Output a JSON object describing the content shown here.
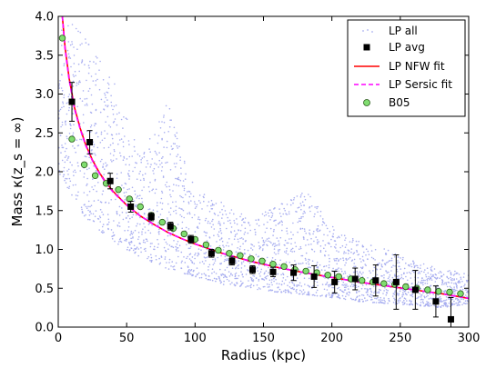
{
  "chart_data": {
    "type": "scatter",
    "title": "",
    "xlabel": "Radius (kpc)",
    "ylabel": "Mass κ(z_s = ∞)",
    "xlim": [
      0,
      300
    ],
    "ylim": [
      0,
      4.0
    ],
    "xticks": [
      0,
      50,
      100,
      150,
      200,
      250,
      300
    ],
    "yticks": [
      0.0,
      0.5,
      1.0,
      1.5,
      2.0,
      2.5,
      3.0,
      3.5,
      4.0
    ],
    "xtick_labels": [
      "0",
      "50",
      "100",
      "150",
      "200",
      "250",
      "300"
    ],
    "ytick_labels": [
      "0.0",
      "0.5",
      "1.0",
      "1.5",
      "2.0",
      "2.5",
      "3.0",
      "3.5",
      "4.0"
    ],
    "grid": false,
    "legend_position": "top-right",
    "colors": {
      "lp_all": "#a8aef0",
      "lp_avg": "#000000",
      "nfw": "#ff0000",
      "sersic": "#ff00ff",
      "b05_fill": "#80dd70",
      "b05_edge": "#2a5a1a"
    },
    "series": [
      {
        "name": "LP all",
        "kind": "cloud",
        "x": [
          0,
          20,
          40,
          60,
          80,
          100,
          120,
          140,
          160,
          180,
          200,
          220,
          240,
          260,
          280,
          300
        ],
        "lower": [
          2.0,
          1.4,
          1.1,
          0.9,
          0.75,
          0.65,
          0.55,
          0.5,
          0.45,
          0.42,
          0.38,
          0.33,
          0.3,
          0.28,
          0.25,
          0.3
        ],
        "upper": [
          4.0,
          3.8,
          3.2,
          2.2,
          2.9,
          1.8,
          1.6,
          1.4,
          1.55,
          1.8,
          1.3,
          1.1,
          1.0,
          0.85,
          0.75,
          0.7
        ]
      },
      {
        "name": "LP avg",
        "kind": "errorbar",
        "points": [
          {
            "x": 10,
            "y": 2.9,
            "err": 0.25
          },
          {
            "x": 23,
            "y": 2.38,
            "err": 0.15
          },
          {
            "x": 38,
            "y": 1.88,
            "err": 0.1
          },
          {
            "x": 53,
            "y": 1.55,
            "err": 0.07
          },
          {
            "x": 68,
            "y": 1.42,
            "err": 0.05
          },
          {
            "x": 82,
            "y": 1.3,
            "err": 0.05
          },
          {
            "x": 97,
            "y": 1.13,
            "err": 0.05
          },
          {
            "x": 112,
            "y": 0.95,
            "err": 0.05
          },
          {
            "x": 127,
            "y": 0.85,
            "err": 0.05
          },
          {
            "x": 142,
            "y": 0.74,
            "err": 0.05
          },
          {
            "x": 157,
            "y": 0.71,
            "err": 0.06
          },
          {
            "x": 172,
            "y": 0.7,
            "err": 0.1
          },
          {
            "x": 187,
            "y": 0.65,
            "err": 0.14
          },
          {
            "x": 202,
            "y": 0.58,
            "err": 0.14
          },
          {
            "x": 217,
            "y": 0.62,
            "err": 0.14
          },
          {
            "x": 232,
            "y": 0.6,
            "err": 0.2
          },
          {
            "x": 247,
            "y": 0.58,
            "err": 0.35
          },
          {
            "x": 261,
            "y": 0.48,
            "err": 0.25
          },
          {
            "x": 276,
            "y": 0.33,
            "err": 0.2
          },
          {
            "x": 287,
            "y": 0.1,
            "err": 0.28
          }
        ]
      },
      {
        "name": "LP NFW fit",
        "kind": "line",
        "style": "solid",
        "x": [
          3,
          5,
          8,
          12,
          16,
          20,
          25,
          30,
          35,
          40,
          50,
          60,
          70,
          80,
          90,
          100,
          120,
          140,
          160,
          180,
          200,
          220,
          240,
          260,
          280,
          300
        ],
        "y": [
          4.0,
          3.6,
          3.2,
          2.82,
          2.56,
          2.35,
          2.15,
          1.99,
          1.86,
          1.75,
          1.57,
          1.43,
          1.32,
          1.22,
          1.14,
          1.07,
          0.95,
          0.85,
          0.77,
          0.7,
          0.64,
          0.58,
          0.53,
          0.48,
          0.43,
          0.37
        ]
      },
      {
        "name": "LP Sersic fit",
        "kind": "line",
        "style": "dashed",
        "x": [
          3,
          5,
          8,
          12,
          16,
          20,
          25,
          30,
          35,
          40,
          50,
          60,
          70,
          80,
          90,
          100,
          120,
          140,
          160,
          180,
          200,
          220,
          240,
          260,
          280,
          300
        ],
        "y": [
          4.0,
          3.58,
          3.18,
          2.8,
          2.55,
          2.34,
          2.14,
          1.98,
          1.85,
          1.74,
          1.57,
          1.43,
          1.32,
          1.22,
          1.14,
          1.07,
          0.95,
          0.85,
          0.77,
          0.7,
          0.64,
          0.58,
          0.53,
          0.48,
          0.43,
          0.37
        ]
      },
      {
        "name": "B05",
        "kind": "points",
        "x": [
          3,
          10,
          19,
          27,
          35,
          44,
          52,
          60,
          68,
          76,
          84,
          92,
          100,
          108,
          117,
          125,
          133,
          141,
          149,
          157,
          165,
          173,
          181,
          189,
          197,
          205,
          214,
          222,
          230,
          238,
          246,
          254,
          262,
          270,
          278,
          286,
          294
        ],
        "y": [
          3.72,
          2.42,
          2.09,
          1.95,
          1.85,
          1.77,
          1.65,
          1.55,
          1.44,
          1.35,
          1.27,
          1.2,
          1.13,
          1.06,
          0.99,
          0.95,
          0.92,
          0.88,
          0.85,
          0.81,
          0.78,
          0.74,
          0.72,
          0.7,
          0.67,
          0.65,
          0.62,
          0.6,
          0.58,
          0.56,
          0.55,
          0.52,
          0.5,
          0.48,
          0.46,
          0.45,
          0.43
        ]
      }
    ]
  }
}
